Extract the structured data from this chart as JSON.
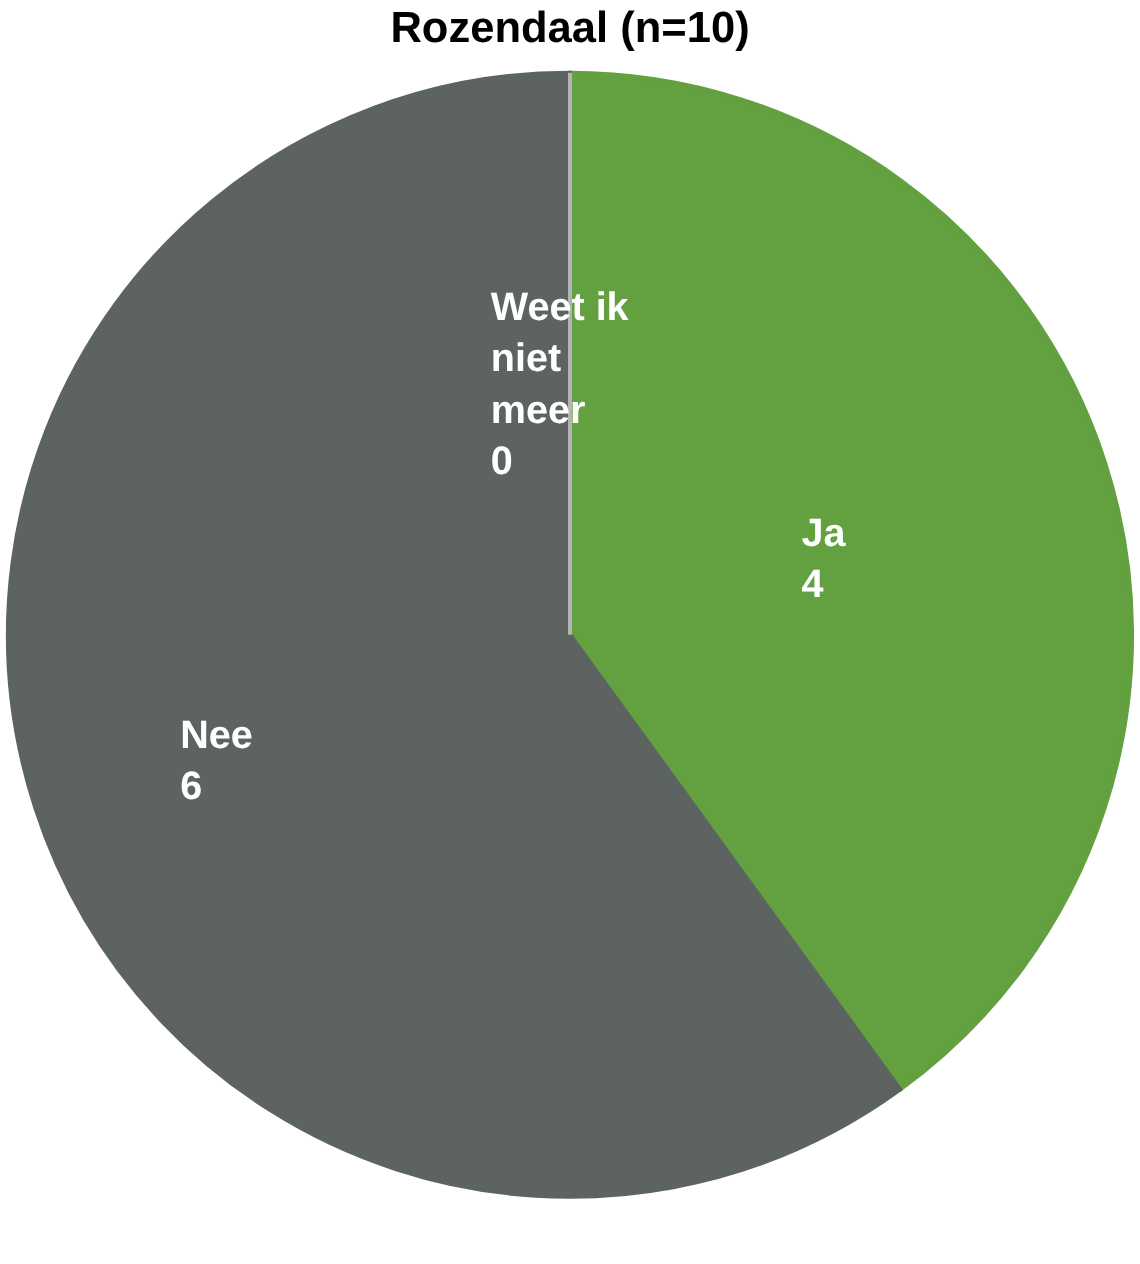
{
  "chart_data": {
    "type": "pie",
    "title": "Rozendaal (n=10)",
    "categories": [
      "Ja",
      "Nee",
      "Weet ik niet meer"
    ],
    "values": [
      4,
      6,
      0
    ],
    "colors": [
      "#63a03f",
      "#5c6361",
      "#b4b4b4"
    ],
    "value_labels": [
      "4",
      "6",
      "0"
    ],
    "legend": false
  }
}
